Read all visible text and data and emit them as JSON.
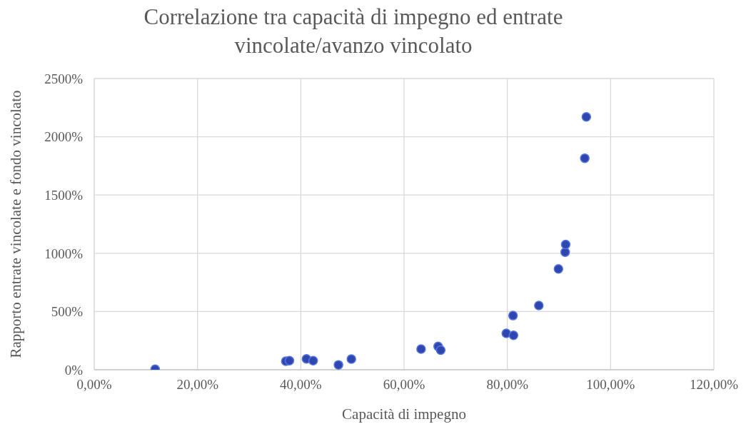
{
  "chart_data": {
    "type": "scatter",
    "title": "Correlazione tra capacità di impegno ed entrate\nvincolate/avanzo vincolato",
    "xlabel": "Capacità di impegno",
    "ylabel": "Rapporto entrate vincolate e fondo vincolato",
    "x": [
      11.8,
      37.1,
      37.8,
      41.1,
      42.4,
      47.3,
      49.8,
      63.3,
      66.6,
      67.1,
      79.8,
      81.2,
      81.1,
      86.1,
      89.9,
      91.2,
      91.3,
      95.0,
      95.3
    ],
    "series": [
      {
        "color": "#2f45b0",
        "values": [
          5,
          74,
          78,
          94,
          78,
          42,
          92,
          178,
          200,
          168,
          312,
          296,
          465,
          551,
          865,
          1010,
          1075,
          1816,
          2171
        ]
      }
    ],
    "xlim": [
      0,
      120
    ],
    "xticks": [
      {
        "value": 0,
        "label": "0,00%"
      },
      {
        "value": 20,
        "label": "20,00%"
      },
      {
        "value": 40,
        "label": "40,00%"
      },
      {
        "value": 60,
        "label": "60,00%"
      },
      {
        "value": 80,
        "label": "80,00%"
      },
      {
        "value": 100,
        "label": "100,00%"
      },
      {
        "value": 120,
        "label": "120,00%"
      }
    ],
    "ylim": [
      0,
      2500
    ],
    "yticks": [
      {
        "value": 0,
        "label": "0%"
      },
      {
        "value": 500,
        "label": "500%"
      },
      {
        "value": 1000,
        "label": "1000%"
      },
      {
        "value": 1500,
        "label": "1500%"
      },
      {
        "value": 2000,
        "label": "2000%"
      },
      {
        "value": 2500,
        "label": "2500%"
      }
    ],
    "grid": true,
    "legend": false,
    "marker": "circle"
  }
}
